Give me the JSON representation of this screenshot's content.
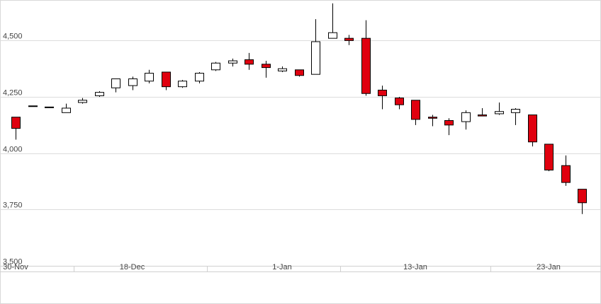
{
  "chart_data": {
    "type": "candlestick",
    "title": "",
    "xlabel": "",
    "ylabel": "",
    "ylim": [
      3500,
      4680
    ],
    "yticks": [
      3500,
      3750,
      4000,
      4250,
      4500
    ],
    "ytick_labels": [
      "3,500",
      "3,750",
      "4,000",
      "4,250",
      "4,500"
    ],
    "xtick_labels": [
      {
        "label": "30-Nov",
        "index": 0
      },
      {
        "label": "18-Dec",
        "index": 7
      },
      {
        "label": "1-Jan",
        "index": 16
      },
      {
        "label": "13-Jan",
        "index": 24
      },
      {
        "label": "23-Jan",
        "index": 32
      }
    ],
    "separator_after_index": [
      3.5,
      11.5,
      19.5,
      28.5
    ],
    "colors": {
      "up": "#ffffff",
      "down": "#e0000f",
      "outline": "#000000",
      "grid": "#dcdcdc",
      "axis": "#d0d0d0"
    },
    "candles": [
      {
        "open": 4160,
        "high": 4160,
        "low": 4060,
        "close": 4110
      },
      {
        "open": 4210,
        "high": 4210,
        "low": 4210,
        "close": 4210
      },
      {
        "open": 4205,
        "high": 4205,
        "low": 4205,
        "close": 4205
      },
      {
        "open": 4180,
        "high": 4220,
        "low": 4180,
        "close": 4200
      },
      {
        "open": 4225,
        "high": 4245,
        "low": 4220,
        "close": 4235
      },
      {
        "open": 4255,
        "high": 4275,
        "low": 4250,
        "close": 4270
      },
      {
        "open": 4290,
        "high": 4330,
        "low": 4270,
        "close": 4330
      },
      {
        "open": 4300,
        "high": 4340,
        "low": 4280,
        "close": 4330
      },
      {
        "open": 4320,
        "high": 4370,
        "low": 4310,
        "close": 4355
      },
      {
        "open": 4360,
        "high": 4360,
        "low": 4280,
        "close": 4295
      },
      {
        "open": 4295,
        "high": 4325,
        "low": 4290,
        "close": 4320
      },
      {
        "open": 4320,
        "high": 4360,
        "low": 4310,
        "close": 4355
      },
      {
        "open": 4370,
        "high": 4405,
        "low": 4365,
        "close": 4400
      },
      {
        "open": 4400,
        "high": 4420,
        "low": 4385,
        "close": 4410
      },
      {
        "open": 4415,
        "high": 4445,
        "low": 4370,
        "close": 4395
      },
      {
        "open": 4395,
        "high": 4410,
        "low": 4335,
        "close": 4380
      },
      {
        "open": 4365,
        "high": 4385,
        "low": 4360,
        "close": 4375
      },
      {
        "open": 4370,
        "high": 4370,
        "low": 4340,
        "close": 4345
      },
      {
        "open": 4350,
        "high": 4595,
        "low": 4350,
        "close": 4495
      },
      {
        "open": 4510,
        "high": 4665,
        "low": 4510,
        "close": 4535
      },
      {
        "open": 4510,
        "high": 4525,
        "low": 4480,
        "close": 4500
      },
      {
        "open": 4510,
        "high": 4590,
        "low": 4255,
        "close": 4265
      },
      {
        "open": 4280,
        "high": 4300,
        "low": 4195,
        "close": 4255
      },
      {
        "open": 4245,
        "high": 4250,
        "low": 4195,
        "close": 4215
      },
      {
        "open": 4235,
        "high": 4235,
        "low": 4125,
        "close": 4150
      },
      {
        "open": 4160,
        "high": 4170,
        "low": 4120,
        "close": 4155
      },
      {
        "open": 4145,
        "high": 4155,
        "low": 4080,
        "close": 4125
      },
      {
        "open": 4140,
        "high": 4190,
        "low": 4105,
        "close": 4180
      },
      {
        "open": 4170,
        "high": 4200,
        "low": 4165,
        "close": 4165
      },
      {
        "open": 4175,
        "high": 4225,
        "low": 4170,
        "close": 4185
      },
      {
        "open": 4180,
        "high": 4200,
        "low": 4125,
        "close": 4195
      },
      {
        "open": 4170,
        "high": 4170,
        "low": 4030,
        "close": 4050
      },
      {
        "open": 4040,
        "high": 4040,
        "low": 3920,
        "close": 3925
      },
      {
        "open": 3945,
        "high": 3990,
        "low": 3855,
        "close": 3870
      },
      {
        "open": 3840,
        "high": 3840,
        "low": 3730,
        "close": 3780
      }
    ]
  }
}
